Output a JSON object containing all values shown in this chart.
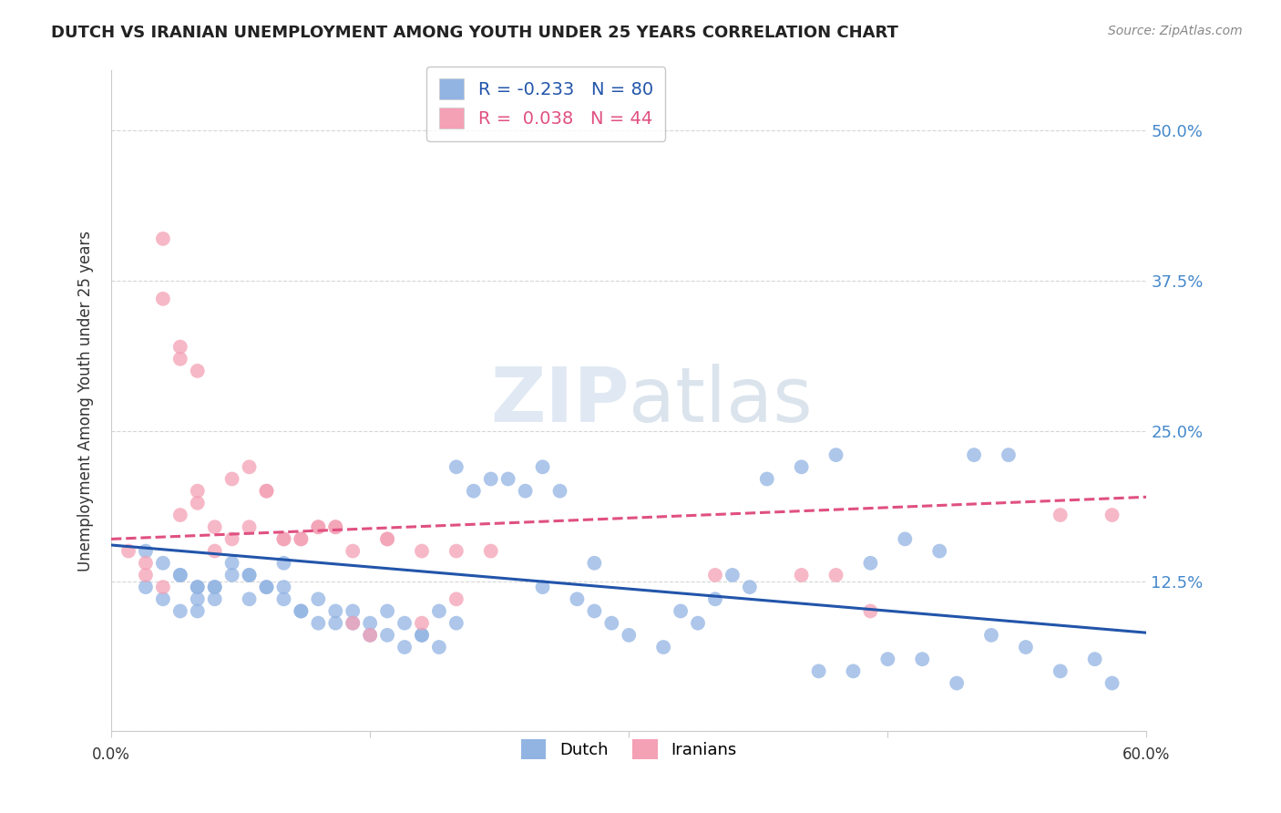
{
  "title": "DUTCH VS IRANIAN UNEMPLOYMENT AMONG YOUTH UNDER 25 YEARS CORRELATION CHART",
  "source": "Source: ZipAtlas.com",
  "ylabel": "Unemployment Among Youth under 25 years",
  "yticks": [
    0.0,
    0.125,
    0.25,
    0.375,
    0.5
  ],
  "ytick_labels": [
    "",
    "12.5%",
    "25.0%",
    "37.5%",
    "50.0%"
  ],
  "xlim": [
    0.0,
    0.6
  ],
  "ylim": [
    0.0,
    0.55
  ],
  "watermark_zip": "ZIP",
  "watermark_atlas": "atlas",
  "legend": {
    "dutch_R": "-0.233",
    "dutch_N": "80",
    "iranian_R": "0.038",
    "iranian_N": "44"
  },
  "dutch_color": "#92b4e3",
  "iranian_color": "#f4a0b5",
  "dutch_line_color": "#2255aa",
  "iranian_line_color": "#e05080",
  "dutch_scatter_x": [
    0.02,
    0.03,
    0.04,
    0.05,
    0.03,
    0.04,
    0.05,
    0.02,
    0.06,
    0.05,
    0.04,
    0.06,
    0.07,
    0.08,
    0.05,
    0.06,
    0.07,
    0.08,
    0.09,
    0.1,
    0.08,
    0.09,
    0.1,
    0.11,
    0.12,
    0.1,
    0.13,
    0.12,
    0.14,
    0.11,
    0.15,
    0.13,
    0.16,
    0.14,
    0.17,
    0.15,
    0.18,
    0.16,
    0.19,
    0.17,
    0.2,
    0.18,
    0.21,
    0.22,
    0.19,
    0.23,
    0.24,
    0.2,
    0.25,
    0.26,
    0.27,
    0.28,
    0.29,
    0.3,
    0.25,
    0.32,
    0.33,
    0.34,
    0.35,
    0.28,
    0.36,
    0.37,
    0.38,
    0.4,
    0.42,
    0.44,
    0.46,
    0.48,
    0.5,
    0.52,
    0.41,
    0.43,
    0.45,
    0.47,
    0.49,
    0.51,
    0.53,
    0.55,
    0.57,
    0.58
  ],
  "dutch_scatter_y": [
    0.15,
    0.14,
    0.13,
    0.12,
    0.11,
    0.1,
    0.1,
    0.12,
    0.11,
    0.12,
    0.13,
    0.12,
    0.14,
    0.13,
    0.11,
    0.12,
    0.13,
    0.11,
    0.12,
    0.14,
    0.13,
    0.12,
    0.11,
    0.1,
    0.09,
    0.12,
    0.1,
    0.11,
    0.09,
    0.1,
    0.08,
    0.09,
    0.08,
    0.1,
    0.07,
    0.09,
    0.08,
    0.1,
    0.07,
    0.09,
    0.22,
    0.08,
    0.2,
    0.21,
    0.1,
    0.21,
    0.2,
    0.09,
    0.22,
    0.2,
    0.11,
    0.1,
    0.09,
    0.08,
    0.12,
    0.07,
    0.1,
    0.09,
    0.11,
    0.14,
    0.13,
    0.12,
    0.21,
    0.22,
    0.23,
    0.14,
    0.16,
    0.15,
    0.23,
    0.23,
    0.05,
    0.05,
    0.06,
    0.06,
    0.04,
    0.08,
    0.07,
    0.05,
    0.06,
    0.04
  ],
  "iranian_scatter_x": [
    0.01,
    0.02,
    0.03,
    0.02,
    0.03,
    0.04,
    0.03,
    0.05,
    0.04,
    0.05,
    0.06,
    0.04,
    0.07,
    0.06,
    0.08,
    0.05,
    0.09,
    0.07,
    0.1,
    0.08,
    0.11,
    0.09,
    0.12,
    0.1,
    0.13,
    0.11,
    0.14,
    0.12,
    0.15,
    0.13,
    0.16,
    0.14,
    0.18,
    0.16,
    0.2,
    0.18,
    0.22,
    0.2,
    0.35,
    0.4,
    0.42,
    0.44,
    0.55,
    0.58
  ],
  "iranian_scatter_y": [
    0.15,
    0.14,
    0.41,
    0.13,
    0.36,
    0.32,
    0.12,
    0.3,
    0.31,
    0.2,
    0.15,
    0.18,
    0.16,
    0.17,
    0.22,
    0.19,
    0.2,
    0.21,
    0.16,
    0.17,
    0.16,
    0.2,
    0.17,
    0.16,
    0.17,
    0.16,
    0.09,
    0.17,
    0.08,
    0.17,
    0.16,
    0.15,
    0.09,
    0.16,
    0.11,
    0.15,
    0.15,
    0.15,
    0.13,
    0.13,
    0.13,
    0.1,
    0.18,
    0.18
  ],
  "dutch_trend_x": [
    0.0,
    0.6
  ],
  "dutch_trend_y": [
    0.155,
    0.082
  ],
  "iranian_trend_x": [
    0.0,
    0.6
  ],
  "iranian_trend_y": [
    0.16,
    0.195
  ],
  "background_color": "#ffffff",
  "grid_color": "#cccccc",
  "right_tick_color": "#4488cc",
  "title_color": "#222222",
  "source_color": "#888888",
  "ylabel_color": "#333333"
}
